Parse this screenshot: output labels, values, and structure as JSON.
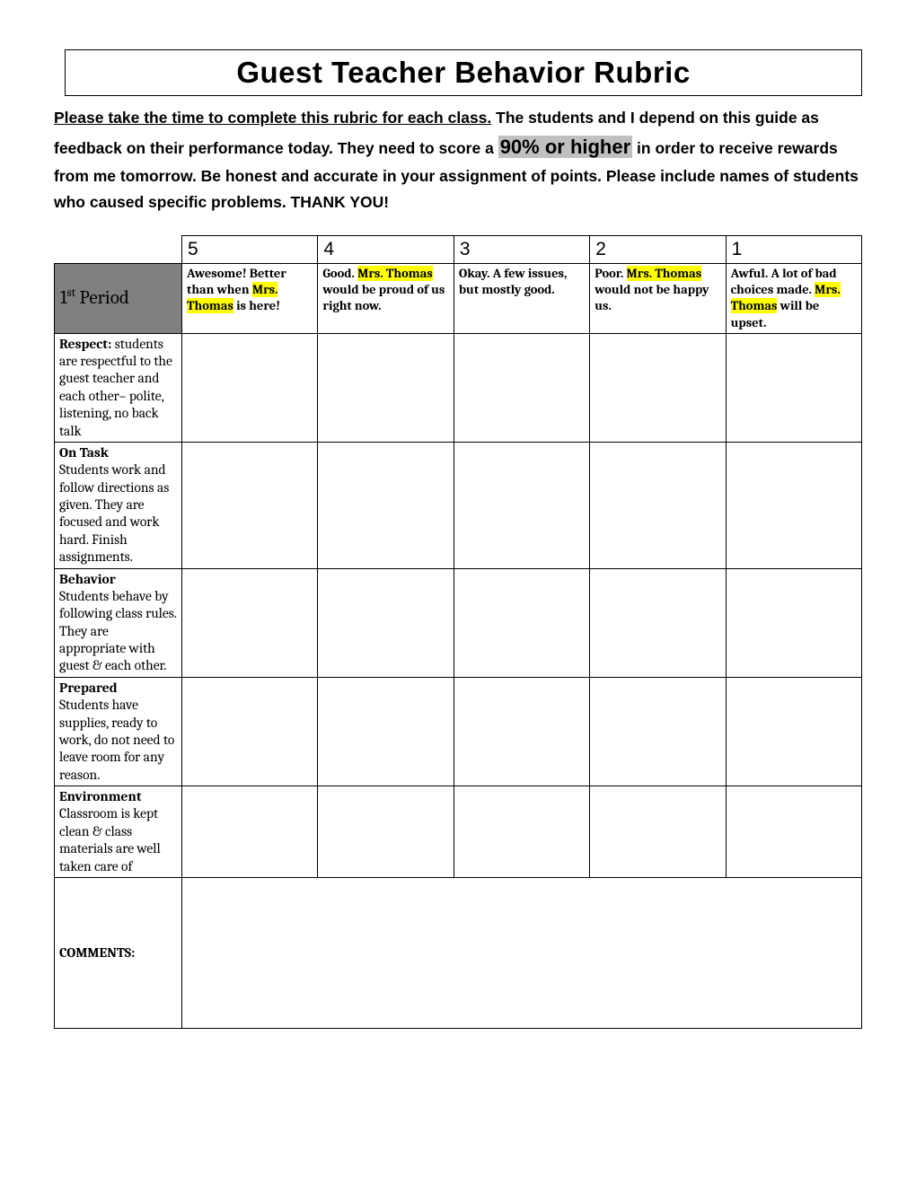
{
  "title": "Guest Teacher Behavior Rubric",
  "instructions": {
    "line1_underline": "Please take the time to complete this rubric for each class.",
    "line1_rest": " The students and I depend on this guide as feedback on their performance today. They need to score a ",
    "highlight_text": "90% or higher",
    "line2": " in order to receive rewards from me tomorrow. Be honest and accurate in your assignment of points. Please include names of students who caused specific problems. THANK YOU!"
  },
  "period_label": "1",
  "period_suffix": "st",
  "period_word": " Period",
  "scores": {
    "col5": "5",
    "col4": "4",
    "col3": "3",
    "col2": "2",
    "col1": "1"
  },
  "descriptions": {
    "d5_a": "Awesome! Better than when ",
    "d5_hl": "Mrs. Thomas",
    "d5_b": " is here!",
    "d4_a": "Good. ",
    "d4_hl": "Mrs. Thomas",
    "d4_b": " would be proud of us right now.",
    "d3": "Okay. A few issues, but mostly good.",
    "d2_a": "Poor. ",
    "d2_hl": "Mrs. Thomas",
    "d2_b": " would not be happy us.",
    "d1_a": "Awful. A lot of bad choices made. ",
    "d1_hl": "Mrs. Thomas",
    "d1_b": " will be upset."
  },
  "criteria": {
    "respect_title": "Respect:",
    "respect_body": " students are respectful to the guest teacher and each other– polite, listening, no back talk",
    "ontask_title": "On Task",
    "ontask_body": "Students work and follow directions as given.  They are focused and work hard. Finish assignments.",
    "behavior_title": "Behavior",
    "behavior_body": "Students behave by following class rules. They are appropriate with guest & each other.",
    "prepared_title": "Prepared",
    "prepared_body": "Students have supplies, ready to work, do not need to leave room for any reason.",
    "environment_title": "Environment",
    "environment_body": "Classroom is kept clean & class materials are well taken care of"
  },
  "comments_label": "COMMENTS:",
  "colors": {
    "highlight_grey": "#c0c0c0",
    "highlight_yellow": "#ffff00",
    "period_bg": "#808080",
    "border": "#000000",
    "background": "#ffffff"
  }
}
